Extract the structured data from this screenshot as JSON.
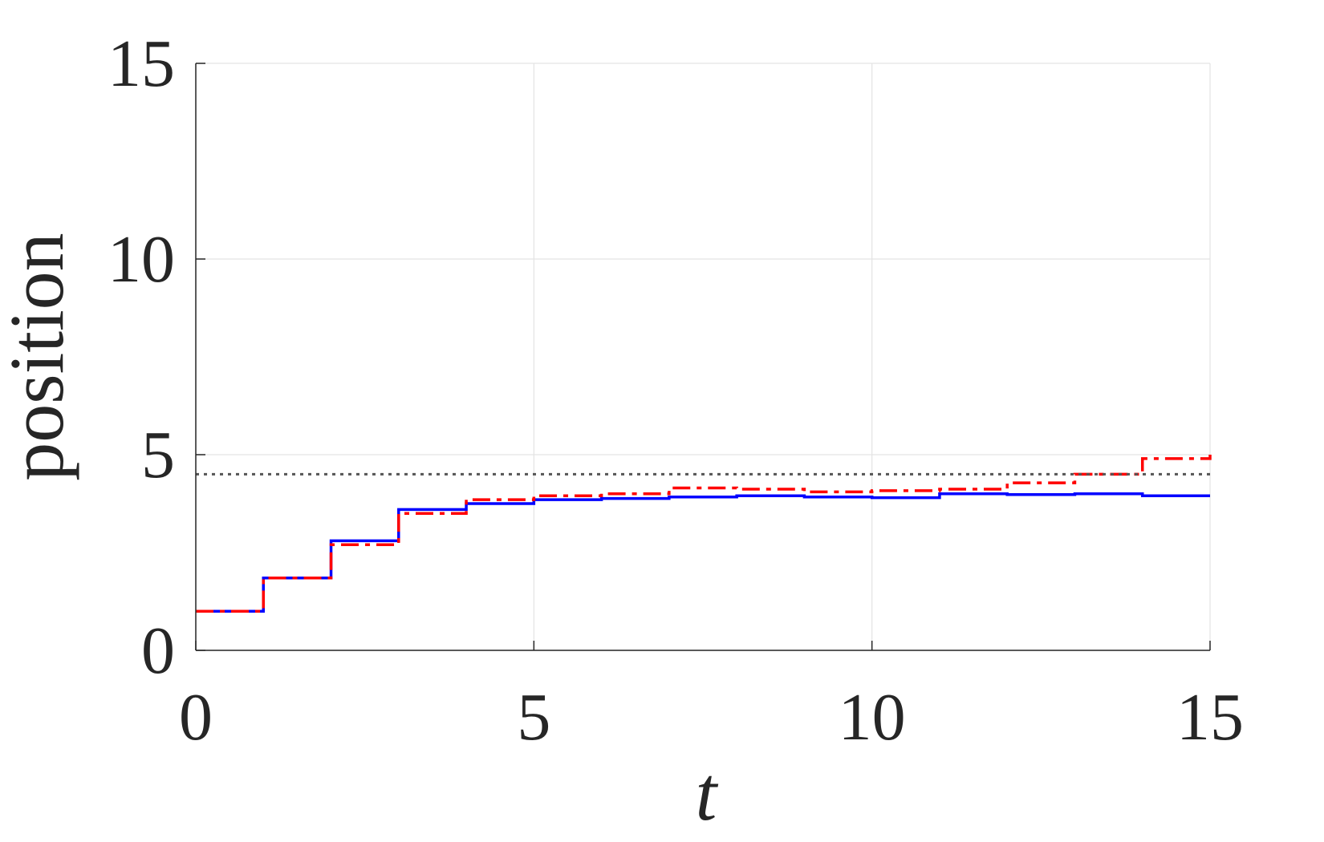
{
  "chart_data": {
    "type": "line",
    "title": "",
    "xlabel": "t",
    "ylabel": "position",
    "xlim": [
      0,
      15
    ],
    "ylim": [
      0,
      15
    ],
    "xticks": [
      "0",
      "5",
      "10",
      "15"
    ],
    "yticks": [
      "0",
      "5",
      "10",
      "15"
    ],
    "grid": true,
    "legend": "none",
    "step": true,
    "series": [
      {
        "color": "#0000ff",
        "dash": "solid",
        "x": [
          0,
          1,
          2,
          3,
          4,
          5,
          6,
          7,
          8,
          9,
          10,
          11,
          12,
          13,
          14,
          15
        ],
        "y": [
          1.0,
          1.85,
          2.8,
          3.6,
          3.75,
          3.85,
          3.88,
          3.92,
          3.95,
          3.92,
          3.9,
          4.0,
          3.98,
          4.0,
          3.95,
          3.95
        ]
      },
      {
        "color": "#ff0000",
        "dash": "dashdot",
        "x": [
          0,
          1,
          2,
          3,
          4,
          5,
          6,
          7,
          8,
          9,
          10,
          11,
          12,
          13,
          14,
          15
        ],
        "y": [
          1.0,
          1.85,
          2.7,
          3.5,
          3.85,
          3.95,
          4.0,
          4.15,
          4.12,
          4.05,
          4.08,
          4.12,
          4.28,
          4.5,
          4.9,
          5.0
        ]
      },
      {
        "color": "#555555",
        "dash": "dotted",
        "x": [
          0,
          15
        ],
        "y": [
          4.5,
          4.5
        ]
      }
    ]
  }
}
